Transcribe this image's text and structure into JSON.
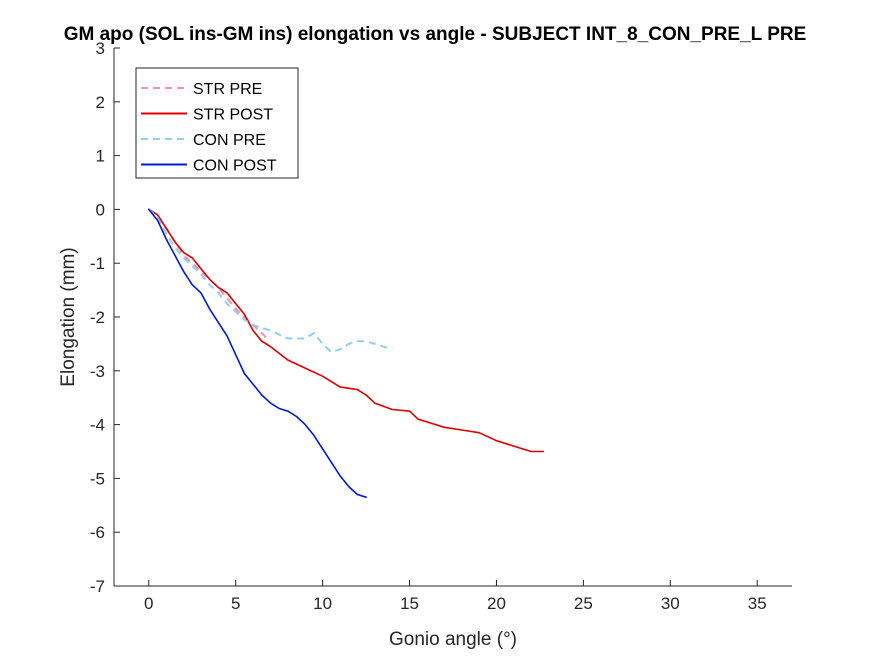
{
  "chart_data": {
    "type": "line",
    "title": "GM apo (SOL ins-GM ins) elongation vs angle - SUBJECT INT_8_CON_PRE_L PRE",
    "xlabel": "Gonio angle (°)",
    "ylabel": "Elongation (mm)",
    "xlim": [
      -2,
      37
    ],
    "ylim": [
      -7,
      3
    ],
    "xticks": [
      0,
      5,
      10,
      15,
      20,
      25,
      30,
      35
    ],
    "yticks": [
      -7,
      -6,
      -5,
      -4,
      -3,
      -2,
      -1,
      0,
      1,
      2,
      3
    ],
    "legend_position": "top-left",
    "series": [
      {
        "name": "STR PRE",
        "color": "#f78fb1",
        "style": "dashed",
        "x": [
          0,
          0.5,
          1.0,
          1.5,
          2.0,
          2.5,
          3.0,
          3.5,
          4.0,
          4.5,
          5.0,
          5.5,
          6.0,
          6.5,
          6.8
        ],
        "y": [
          0,
          -0.1,
          -0.35,
          -0.6,
          -0.85,
          -1.0,
          -1.15,
          -1.3,
          -1.45,
          -1.65,
          -1.85,
          -2.0,
          -2.15,
          -2.3,
          -2.4
        ]
      },
      {
        "name": "STR POST",
        "color": "#e00000",
        "style": "solid",
        "x": [
          0,
          0.5,
          1.0,
          1.5,
          2.0,
          2.5,
          3.0,
          3.5,
          4.0,
          4.5,
          5.0,
          5.5,
          6.0,
          6.5,
          7.0,
          8.0,
          9.0,
          10.0,
          11.0,
          12.0,
          12.5,
          13.0,
          14.0,
          15.0,
          15.5,
          16.0,
          17.0,
          18.0,
          19.0,
          20.0,
          21.0,
          22.0,
          22.7
        ],
        "y": [
          0,
          -0.1,
          -0.35,
          -0.6,
          -0.8,
          -0.9,
          -1.1,
          -1.3,
          -1.45,
          -1.55,
          -1.75,
          -1.95,
          -2.25,
          -2.45,
          -2.55,
          -2.8,
          -2.95,
          -3.1,
          -3.3,
          -3.35,
          -3.45,
          -3.6,
          -3.72,
          -3.75,
          -3.9,
          -3.95,
          -4.05,
          -4.1,
          -4.15,
          -4.3,
          -4.4,
          -4.5,
          -4.5
        ]
      },
      {
        "name": "CON PRE",
        "color": "#8ecff5",
        "style": "dashed",
        "x": [
          0,
          0.5,
          1.0,
          1.5,
          2.0,
          2.5,
          3.0,
          3.5,
          4.0,
          4.5,
          5.0,
          5.5,
          6.0,
          7.0,
          8.0,
          9.0,
          9.5,
          10.0,
          10.5,
          11.0,
          11.5,
          12.0,
          12.5,
          13.0,
          13.5,
          14.0
        ],
        "y": [
          0,
          -0.15,
          -0.45,
          -0.7,
          -0.9,
          -1.05,
          -1.2,
          -1.4,
          -1.55,
          -1.75,
          -1.9,
          -2.05,
          -2.15,
          -2.25,
          -2.4,
          -2.4,
          -2.3,
          -2.5,
          -2.65,
          -2.6,
          -2.5,
          -2.45,
          -2.45,
          -2.5,
          -2.55,
          -2.6
        ]
      },
      {
        "name": "CON POST",
        "color": "#0019d6",
        "style": "solid",
        "x": [
          0,
          0.5,
          1.0,
          1.5,
          2.0,
          2.5,
          3.0,
          3.5,
          4.0,
          4.5,
          5.0,
          5.5,
          6.0,
          6.5,
          7.0,
          7.5,
          8.0,
          8.5,
          9.0,
          9.5,
          10.0,
          10.5,
          11.0,
          11.5,
          12.0,
          12.5
        ],
        "y": [
          0,
          -0.2,
          -0.55,
          -0.85,
          -1.15,
          -1.4,
          -1.55,
          -1.85,
          -2.1,
          -2.35,
          -2.7,
          -3.05,
          -3.25,
          -3.45,
          -3.6,
          -3.7,
          -3.75,
          -3.85,
          -4.0,
          -4.2,
          -4.45,
          -4.7,
          -4.95,
          -5.15,
          -5.3,
          -5.35
        ]
      }
    ]
  }
}
